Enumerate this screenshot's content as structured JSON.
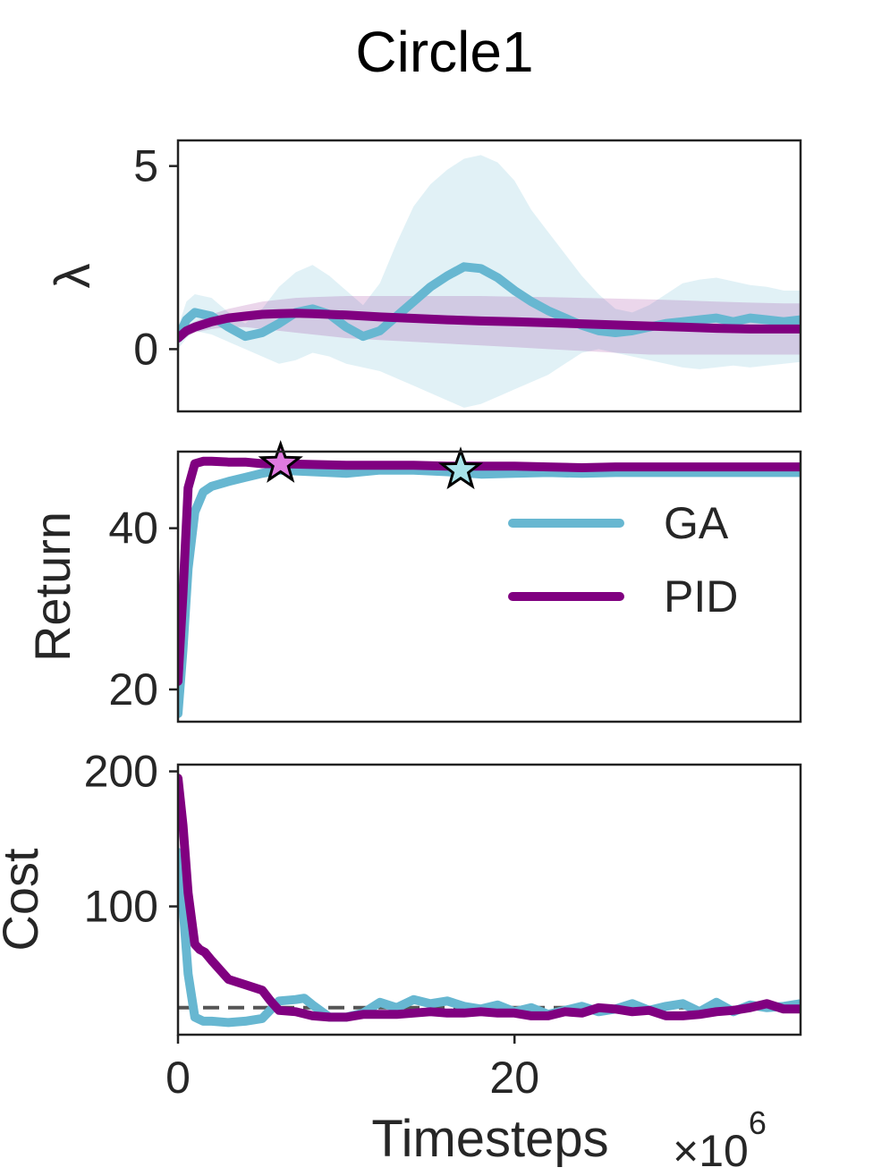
{
  "figure_title": "Circle1",
  "x_label": "Timesteps",
  "x_scale_label": "×10",
  "x_scale_exponent": "6",
  "colors": {
    "GA": "#67b7d1",
    "PID": "#800080",
    "GA_star": "#a7e3ea",
    "PID_star": "#e07ae0",
    "threshold": "#555555",
    "axes": "#222222"
  },
  "chart_data": [
    {
      "id": "lambda",
      "type": "line",
      "title": "Circle1",
      "ylabel": "λ",
      "xlabel": "",
      "xlim": [
        0,
        37
      ],
      "ylim": [
        -1.7,
        5.7
      ],
      "yticks": [
        {
          "value": 0,
          "label": "0"
        },
        {
          "value": 5,
          "label": "5"
        }
      ],
      "xticks": [],
      "series": [
        {
          "name": "GA",
          "x": [
            0,
            0.5,
            1,
            2,
            3,
            4,
            5,
            6,
            7,
            8,
            9,
            10,
            11,
            12,
            13,
            14,
            15,
            16,
            17,
            18,
            19,
            20,
            21,
            22,
            23,
            24,
            25,
            26,
            27,
            28,
            29,
            30,
            31,
            32,
            33,
            34,
            35,
            36,
            37
          ],
          "y": [
            0.3,
            0.8,
            1.0,
            0.9,
            0.6,
            0.35,
            0.45,
            0.7,
            1.0,
            1.1,
            0.95,
            0.6,
            0.35,
            0.5,
            0.9,
            1.3,
            1.7,
            2.0,
            2.25,
            2.2,
            1.95,
            1.6,
            1.3,
            1.05,
            0.85,
            0.65,
            0.5,
            0.45,
            0.5,
            0.6,
            0.7,
            0.75,
            0.8,
            0.85,
            0.75,
            0.85,
            0.8,
            0.75,
            0.8
          ],
          "lower": [
            0.0,
            0.3,
            0.5,
            0.4,
            0.2,
            0.0,
            -0.2,
            -0.4,
            -0.3,
            -0.1,
            -0.2,
            -0.4,
            -0.5,
            -0.6,
            -0.8,
            -1.0,
            -1.2,
            -1.4,
            -1.6,
            -1.5,
            -1.3,
            -1.1,
            -0.9,
            -0.7,
            -0.4,
            -0.1,
            0.0,
            -0.1,
            -0.2,
            -0.3,
            -0.4,
            -0.5,
            -0.55,
            -0.5,
            -0.45,
            -0.5,
            -0.45,
            -0.4,
            -0.35
          ],
          "upper": [
            0.6,
            1.3,
            1.5,
            1.4,
            1.0,
            0.7,
            1.1,
            1.7,
            2.1,
            2.3,
            2.0,
            1.6,
            1.2,
            1.8,
            2.9,
            3.9,
            4.5,
            4.9,
            5.2,
            5.3,
            5.1,
            4.6,
            3.8,
            3.2,
            2.6,
            2.0,
            1.5,
            1.1,
            1.0,
            1.2,
            1.5,
            1.8,
            1.9,
            1.95,
            1.85,
            1.75,
            1.7,
            1.6,
            1.6
          ]
        },
        {
          "name": "PID",
          "x": [
            0,
            0.5,
            1,
            2,
            3,
            4,
            5,
            6,
            7,
            8,
            10,
            12,
            14,
            16,
            18,
            20,
            22,
            24,
            26,
            28,
            30,
            32,
            34,
            36,
            37
          ],
          "y": [
            0.3,
            0.5,
            0.6,
            0.75,
            0.85,
            0.9,
            0.95,
            0.97,
            0.98,
            0.97,
            0.93,
            0.88,
            0.84,
            0.8,
            0.77,
            0.75,
            0.72,
            0.69,
            0.66,
            0.63,
            0.6,
            0.57,
            0.55,
            0.55,
            0.55
          ],
          "lower": [
            0.2,
            0.35,
            0.45,
            0.55,
            0.6,
            0.6,
            0.55,
            0.5,
            0.45,
            0.4,
            0.3,
            0.25,
            0.2,
            0.15,
            0.1,
            0.05,
            0.0,
            -0.05,
            -0.1,
            -0.15,
            -0.15,
            -0.15,
            -0.15,
            -0.15,
            -0.15
          ],
          "upper": [
            0.4,
            0.65,
            0.75,
            0.95,
            1.1,
            1.2,
            1.3,
            1.35,
            1.4,
            1.42,
            1.45,
            1.45,
            1.45,
            1.45,
            1.45,
            1.43,
            1.42,
            1.4,
            1.38,
            1.36,
            1.33,
            1.3,
            1.27,
            1.25,
            1.25
          ]
        }
      ]
    },
    {
      "id": "return",
      "type": "line",
      "ylabel": "Return",
      "xlabel": "",
      "xlim": [
        0,
        37
      ],
      "ylim": [
        16,
        49.5
      ],
      "yticks": [
        {
          "value": 20,
          "label": "20"
        },
        {
          "value": 40,
          "label": "40"
        }
      ],
      "xticks": [],
      "legend": {
        "position": "right",
        "entries": [
          "GA",
          "PID"
        ]
      },
      "series": [
        {
          "name": "GA",
          "x": [
            0,
            0.3,
            0.6,
            1,
            1.5,
            2,
            3,
            4,
            5,
            6,
            8,
            10,
            12,
            14,
            16,
            18,
            20,
            22,
            24,
            26,
            28,
            30,
            32,
            34,
            36,
            37
          ],
          "y": [
            17,
            25,
            35,
            42,
            44.5,
            45.2,
            45.8,
            46.3,
            46.8,
            47.2,
            47.0,
            46.8,
            47.2,
            47.2,
            47.0,
            46.7,
            46.8,
            46.9,
            46.8,
            46.9,
            46.9,
            46.9,
            46.9,
            46.9,
            46.9,
            46.9
          ]
        },
        {
          "name": "PID",
          "x": [
            0,
            0.3,
            0.6,
            1,
            1.5,
            2,
            3,
            4,
            5,
            6,
            8,
            10,
            12,
            14,
            16,
            18,
            20,
            22,
            24,
            26,
            28,
            30,
            32,
            34,
            36,
            37
          ],
          "y": [
            21,
            32,
            45,
            48.0,
            48.3,
            48.3,
            48.2,
            48.2,
            48.0,
            48.0,
            47.9,
            47.8,
            47.8,
            47.8,
            47.7,
            47.7,
            47.7,
            47.6,
            47.5,
            47.6,
            47.6,
            47.6,
            47.6,
            47.6,
            47.6,
            47.6
          ]
        }
      ],
      "annotations": [
        {
          "type": "star",
          "series": "PID",
          "x": 6.1,
          "y": 48.0
        },
        {
          "type": "star",
          "series": "GA",
          "x": 16.8,
          "y": 47.2
        }
      ]
    },
    {
      "id": "cost",
      "type": "line",
      "ylabel": "Cost",
      "xlabel": "Timesteps",
      "xlim": [
        0,
        37
      ],
      "ylim": [
        5,
        205
      ],
      "yticks": [
        {
          "value": 100,
          "label": "100"
        },
        {
          "value": 200,
          "label": "200"
        }
      ],
      "xticks": [
        {
          "value": 0,
          "label": "0"
        },
        {
          "value": 20,
          "label": "20"
        }
      ],
      "threshold": 25,
      "series": [
        {
          "name": "GA",
          "x": [
            0,
            0.3,
            0.6,
            1,
            1.5,
            2,
            3,
            4,
            5,
            6,
            7,
            7.5,
            8,
            9,
            10,
            11,
            12,
            13,
            14,
            15,
            16,
            17,
            18,
            19,
            20,
            21,
            22,
            23,
            24,
            25,
            26,
            27,
            28,
            29,
            30,
            31,
            32,
            33,
            34,
            35,
            36,
            37
          ],
          "y": [
            140,
            100,
            50,
            18,
            15,
            15,
            14,
            15,
            17,
            30,
            31,
            32,
            27,
            18,
            18,
            21,
            29,
            25,
            31,
            28,
            30,
            26,
            24,
            27,
            22,
            25,
            20,
            23,
            26,
            22,
            24,
            28,
            23,
            26,
            28,
            22,
            29,
            22,
            27,
            25,
            26,
            28
          ]
        },
        {
          "name": "PID",
          "x": [
            0,
            0.3,
            0.6,
            1,
            1.3,
            1.6,
            2,
            3,
            4,
            5,
            5.5,
            6,
            7,
            8,
            9,
            10,
            11,
            12,
            13,
            14,
            15,
            16,
            17,
            18,
            19,
            20,
            21,
            22,
            23,
            24,
            25,
            26,
            27,
            28,
            29,
            30,
            31,
            32,
            33,
            34,
            35,
            36,
            37
          ],
          "y": [
            195,
            160,
            110,
            72,
            68,
            66,
            60,
            46,
            42,
            38,
            30,
            23,
            22,
            19,
            18,
            18,
            20,
            20,
            20,
            21,
            22,
            21,
            21,
            22,
            21,
            21,
            19,
            19,
            22,
            21,
            25,
            24,
            22,
            23,
            19,
            19,
            20,
            22,
            23,
            25,
            28,
            24,
            24
          ]
        }
      ]
    }
  ]
}
